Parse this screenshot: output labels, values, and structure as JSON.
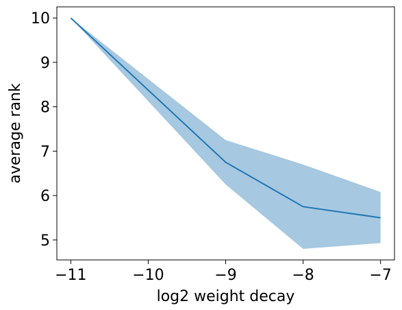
{
  "chart_data": {
    "type": "line",
    "title": "",
    "xlabel": "log2 weight decay",
    "ylabel": "average rank",
    "xlim": [
      -11.18,
      -6.82
    ],
    "ylim": [
      4.55,
      10.25
    ],
    "x_ticks": [
      -11,
      -10,
      -9,
      -8,
      -7
    ],
    "x_tick_labels": [
      "−11",
      "−10",
      "−9",
      "−8",
      "−7"
    ],
    "y_ticks": [
      5,
      6,
      7,
      8,
      9,
      10
    ],
    "y_tick_labels": [
      "5",
      "6",
      "7",
      "8",
      "9",
      "10"
    ],
    "grid": false,
    "series": [
      {
        "x": [
          -11,
          -9,
          -8,
          -7
        ],
        "y": [
          10.0,
          6.75,
          5.75,
          5.5
        ],
        "lower": [
          10.0,
          6.25,
          4.8,
          4.93
        ],
        "upper": [
          10.0,
          7.25,
          6.7,
          6.08
        ]
      }
    ],
    "colors": {
      "line": "#1f77b4",
      "band": "#a6c8e0",
      "axes": "#000000"
    }
  }
}
